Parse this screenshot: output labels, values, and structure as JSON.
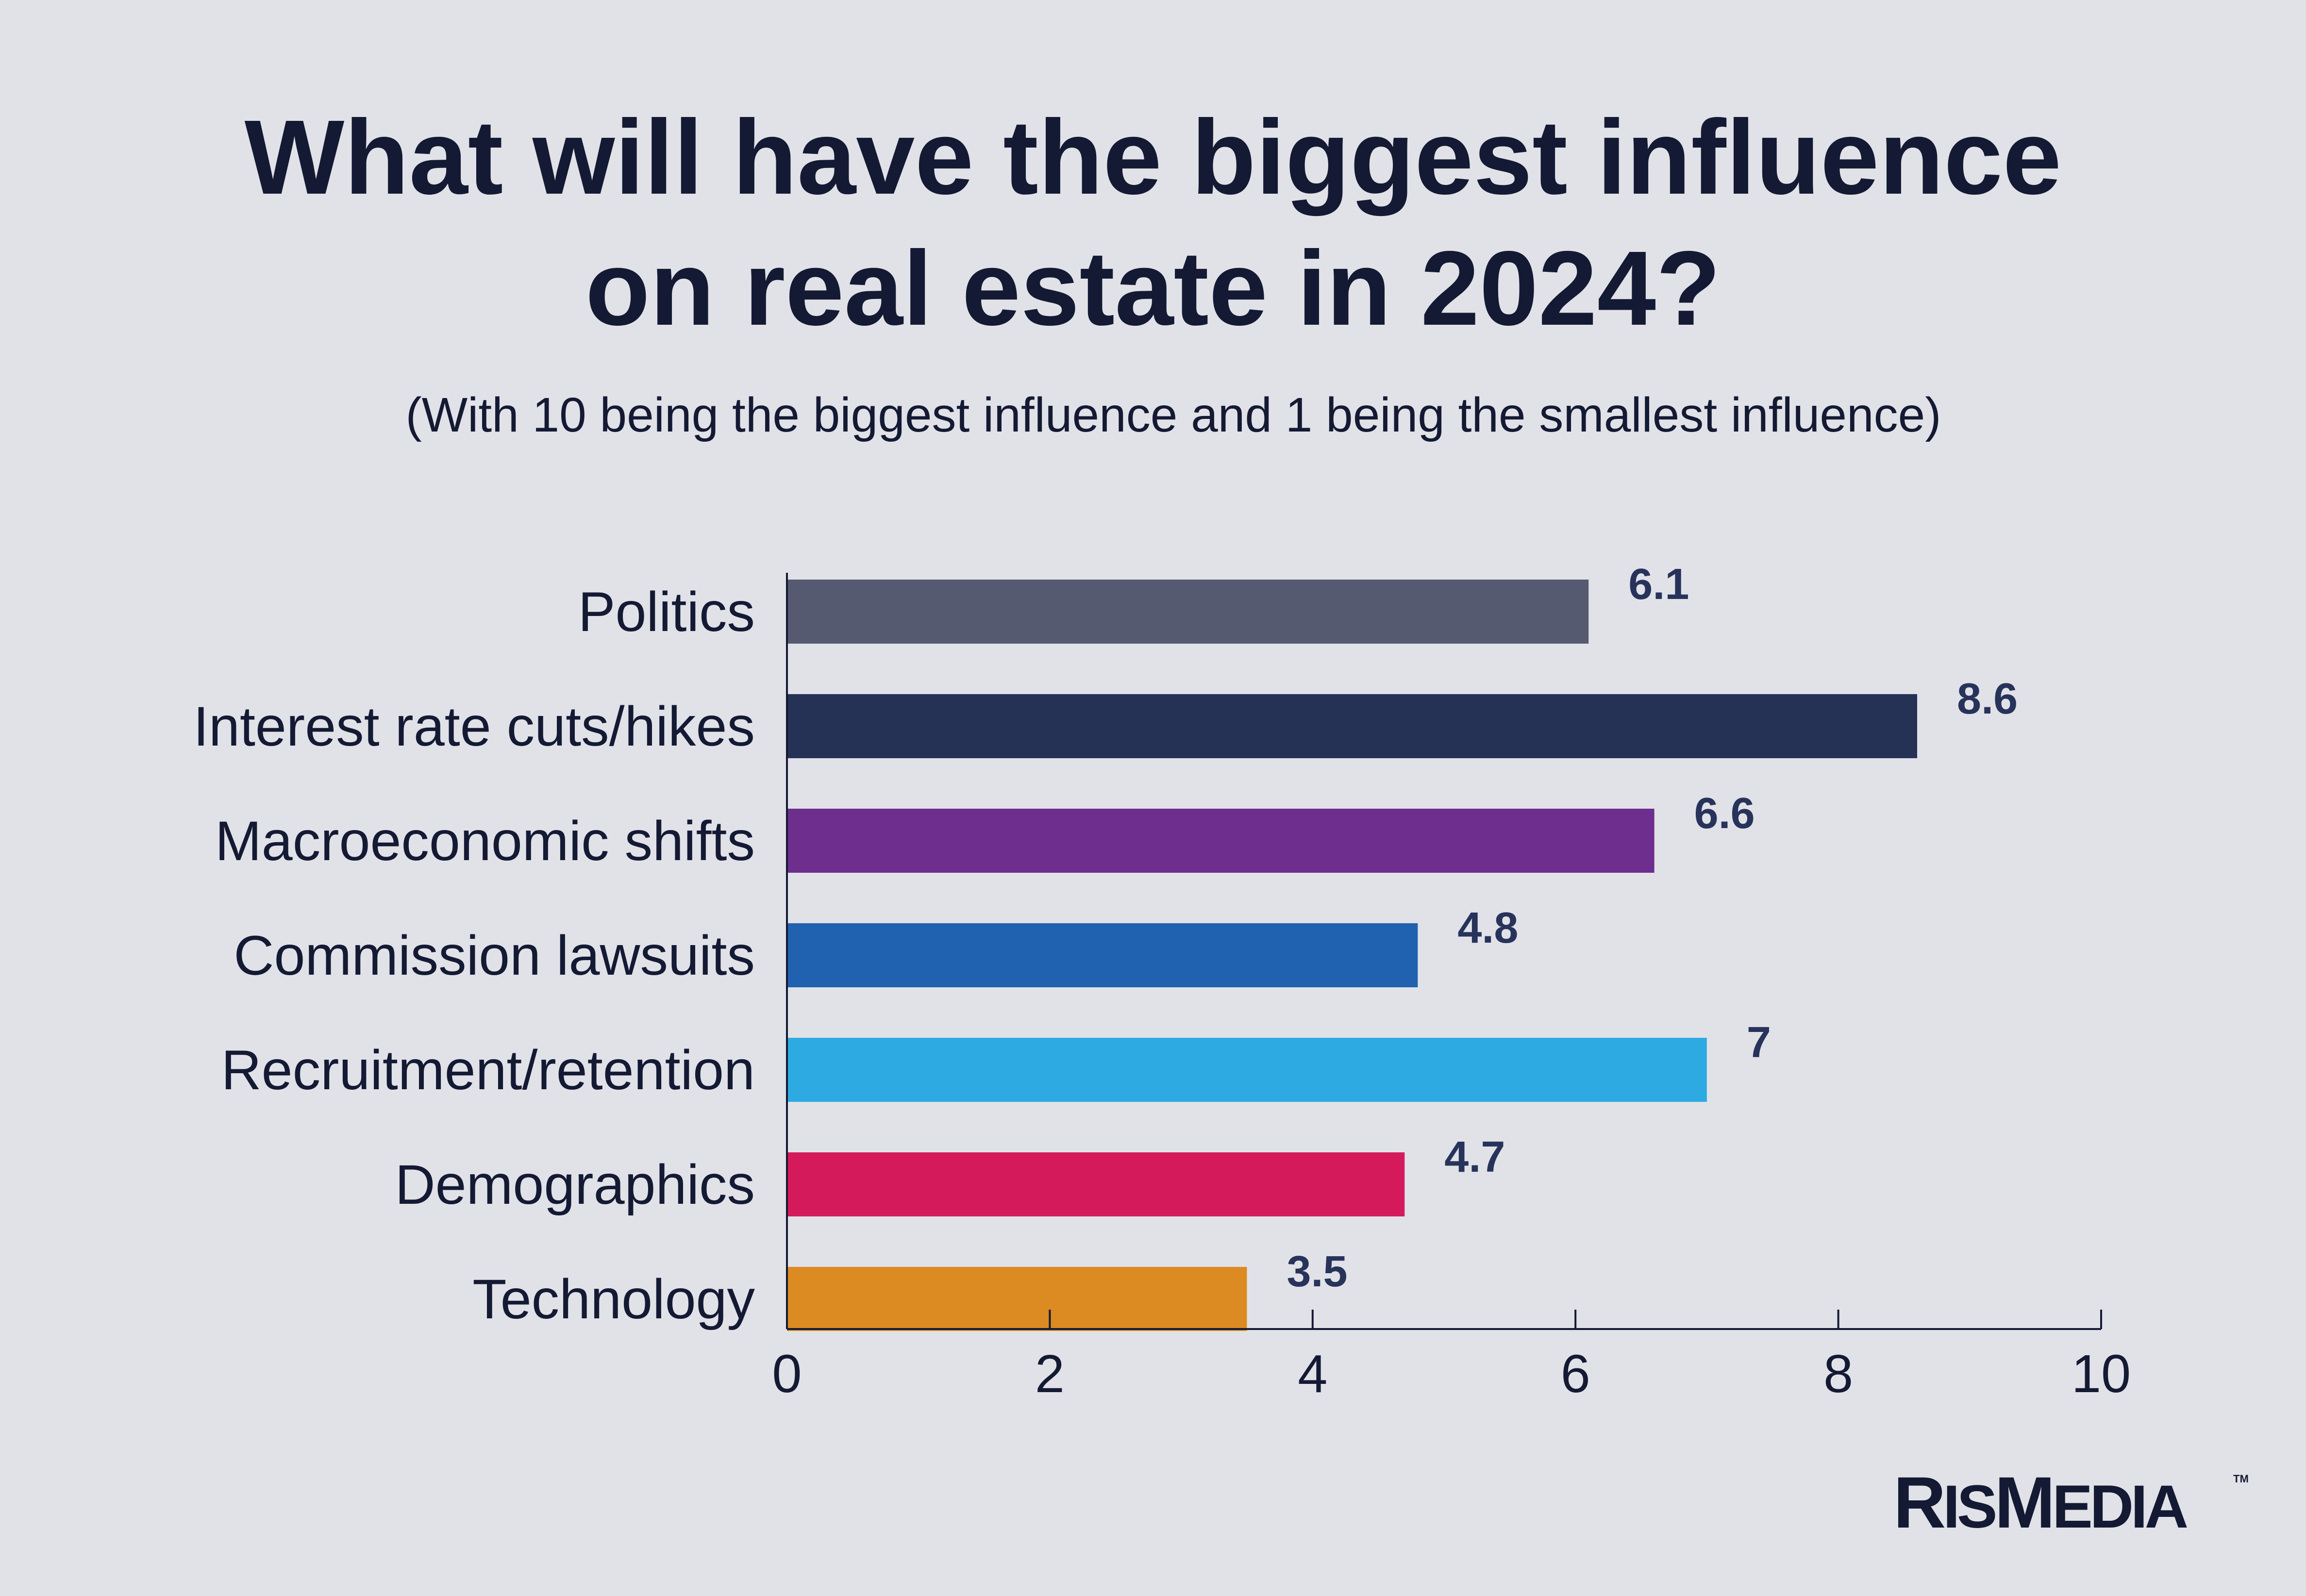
{
  "title_line1": "What will have the biggest influence",
  "title_line2": "on real estate in 2024?",
  "subtitle": "(With 10 being the biggest influence and 1 being the smallest influence)",
  "logo": {
    "text_r": "R",
    "text_is": "IS",
    "text_m": "M",
    "text_edia": "EDIA",
    "tm": "TM"
  },
  "colors": {
    "background": "#e1e2e8",
    "text": "#141a33",
    "value_label": "#27335a"
  },
  "chart_data": {
    "type": "bar",
    "orientation": "horizontal",
    "categories": [
      "Politics",
      "Interest rate cuts/hikes",
      "Macroeconomic shifts",
      "Commission lawsuits",
      "Recruitment/retention",
      "Demographics",
      "Technology"
    ],
    "values": [
      6.1,
      8.6,
      6.6,
      4.8,
      7,
      4.7,
      3.5
    ],
    "value_labels": [
      "6.1",
      "8.6",
      "6.6",
      "4.8",
      "7",
      "4.7",
      "3.5"
    ],
    "bar_colors": [
      "#555a70",
      "#263156",
      "#6e2e8e",
      "#2062b0",
      "#2eaae2",
      "#d51a5c",
      "#db8b21"
    ],
    "xlim": [
      0,
      10
    ],
    "xticks": [
      0,
      2,
      4,
      6,
      8,
      10
    ],
    "xlabel": "",
    "ylabel": "",
    "grid": false,
    "legend": "none"
  }
}
